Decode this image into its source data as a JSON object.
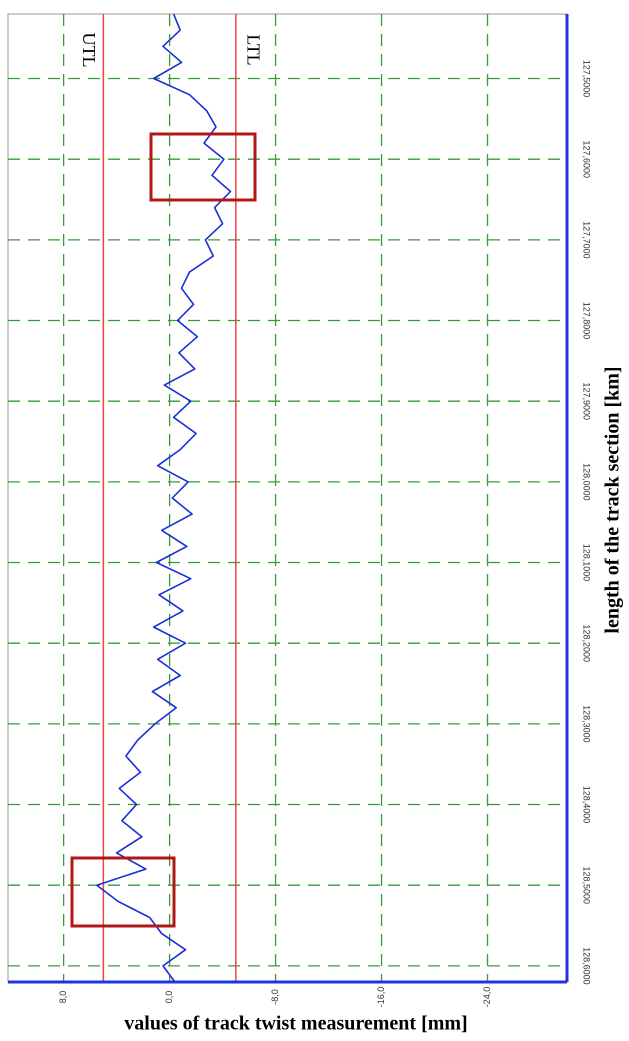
{
  "chart_data": {
    "type": "line",
    "x_label": "length of the track section [km]",
    "y_label": "values of track twist measurement [mm]",
    "xlim": [
      127.42,
      128.62
    ],
    "xticks": [
      {
        "value": 127.5,
        "label": "127,5000"
      },
      {
        "value": 127.6,
        "label": "127,6000"
      },
      {
        "value": 127.7,
        "label": "127,7000"
      },
      {
        "value": 127.8,
        "label": "127,8000"
      },
      {
        "value": 127.9,
        "label": "127,9000"
      },
      {
        "value": 128.0,
        "label": "128,0000"
      },
      {
        "value": 128.1,
        "label": "128,1000"
      },
      {
        "value": 128.2,
        "label": "128,2000"
      },
      {
        "value": 128.3,
        "label": "128,3000"
      },
      {
        "value": 128.4,
        "label": "128,4000"
      },
      {
        "value": 128.5,
        "label": "128,5000"
      },
      {
        "value": 128.6,
        "label": "128,6000"
      }
    ],
    "ylim": [
      12.2,
      -30.0
    ],
    "yticks": [
      {
        "value": 8,
        "label": "8,0"
      },
      {
        "value": 0,
        "label": "0,0"
      },
      {
        "value": -8,
        "label": "-8,0"
      },
      {
        "value": -16,
        "label": "-16,0"
      },
      {
        "value": -24,
        "label": "-24,0"
      }
    ],
    "grid": true,
    "limits": [
      {
        "name": "UTL",
        "value": 5,
        "color": "#ee4444"
      },
      {
        "name": "LTL",
        "value": -5,
        "color": "#ee4444"
      }
    ],
    "x": [
      127.42,
      127.44,
      127.46,
      127.48,
      127.5,
      127.52,
      127.54,
      127.56,
      127.58,
      127.6,
      127.62,
      127.64,
      127.66,
      127.68,
      127.7,
      127.72,
      127.74,
      127.76,
      127.78,
      127.8,
      127.82,
      127.84,
      127.86,
      127.88,
      127.9,
      127.92,
      127.94,
      127.96,
      127.98,
      128.0,
      128.02,
      128.04,
      128.06,
      128.08,
      128.1,
      128.12,
      128.14,
      128.16,
      128.18,
      128.2,
      128.22,
      128.24,
      128.26,
      128.28,
      128.3,
      128.32,
      128.34,
      128.36,
      128.38,
      128.4,
      128.42,
      128.44,
      128.46,
      128.48,
      128.5,
      128.52,
      128.54,
      128.56,
      128.58,
      128.6,
      128.62
    ],
    "series": [
      {
        "color": "#1a2fd6",
        "values": [
          -0.3,
          -0.8,
          0.5,
          -0.9,
          1.2,
          -1.5,
          -2.8,
          -3.5,
          -2.6,
          -4.1,
          -3.2,
          -4.6,
          -3.4,
          -4.0,
          -2.7,
          -3.3,
          -1.5,
          -0.9,
          -1.8,
          -0.6,
          -2.1,
          -0.7,
          -1.9,
          0.4,
          -1.6,
          -0.3,
          -2.0,
          -0.8,
          0.9,
          -1.4,
          -0.2,
          -1.7,
          0.6,
          -1.3,
          1.0,
          -1.6,
          0.8,
          -1.0,
          1.2,
          -1.2,
          0.9,
          -0.8,
          1.3,
          -0.5,
          1.1,
          2.4,
          3.3,
          2.2,
          3.8,
          2.5,
          3.6,
          2.1,
          4.0,
          1.8,
          5.5,
          3.9,
          1.5,
          0.6,
          -1.2,
          0.5,
          -0.4
        ]
      }
    ]
  }
}
